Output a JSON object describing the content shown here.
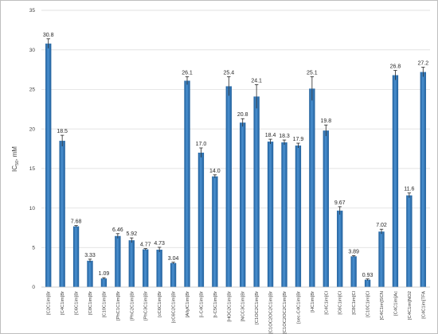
{
  "chart_data": {
    "type": "bar",
    "title": "",
    "xlabel": "",
    "ylabel": "IC50, mM",
    "ylabel_main": "IC",
    "ylabel_sub": "50",
    "ylabel_unit": ", mM",
    "ylim": [
      0,
      35
    ],
    "yticks": [
      0,
      5,
      10,
      15,
      20,
      25,
      30,
      35
    ],
    "ytick_labels": [
      "0",
      "5",
      "10",
      "15",
      "20",
      "25",
      "30",
      "35"
    ],
    "grid": "horizontal",
    "legend": "none",
    "bar_color": "#2e75b6",
    "categories": [
      "[C2C1im]Br",
      "[C4C1im]Br",
      "[C6C1im]Br",
      "[C8C1im]Br",
      "[C10C1im]Br",
      "[PhC1C1im]Br",
      "[PhC2C1im]Br",
      "[PhC3C1im]Br",
      "[cC6C1im]Br",
      "[cC6C2C1im]Br",
      "[AllylC1im]Br",
      "[i-C4C1im]Br",
      "[t-C5C1im]Br",
      "[HOC2C1im]Br",
      "[NCC3C1im]Br",
      "[C1OC2C1im]Br",
      "[C1OC2OC2C1im]Br",
      "[C1OC2OC2C1im]Br",
      "[sec-C4C1im]Br",
      "[HC1im]Br",
      "[C4C1im]Cl",
      "[C6C1im]Cl",
      "[C8C1im]Cl",
      "[C10C1im]Cl",
      "[C4C1im]SCN",
      "[C4C1im]Ac",
      "[C4C1im]NO2",
      "[C4C1im]TFA"
    ],
    "values": [
      30.8,
      18.5,
      7.68,
      3.33,
      1.09,
      6.46,
      5.92,
      4.77,
      4.73,
      3.04,
      26.1,
      17.0,
      14.0,
      25.4,
      20.8,
      24.1,
      18.4,
      18.3,
      17.9,
      25.1,
      19.8,
      9.67,
      3.89,
      0.93,
      7.02,
      26.8,
      11.6,
      27.2
    ],
    "value_labels": [
      "30.8",
      "18.5",
      "7.68",
      "3.33",
      "1.09",
      "6.46",
      "5.92",
      "4.77",
      "4.73",
      "3.04",
      "26.1",
      "17.0",
      "14.0",
      "25.4",
      "20.8",
      "24.1",
      "18.4",
      "18.3",
      "17.9",
      "25.1",
      "19.8",
      "9.67",
      "3.89",
      "0.93",
      "7.02",
      "26.8",
      "11.6",
      "27.2"
    ],
    "errors": [
      0.6,
      0.7,
      0.1,
      0.2,
      0.1,
      0.3,
      0.3,
      0.1,
      0.3,
      0.1,
      0.5,
      0.6,
      0.2,
      1.2,
      0.5,
      1.5,
      0.3,
      0.3,
      0.3,
      1.5,
      0.7,
      0.5,
      0.1,
      0.1,
      0.3,
      0.6,
      0.3,
      0.6
    ]
  }
}
